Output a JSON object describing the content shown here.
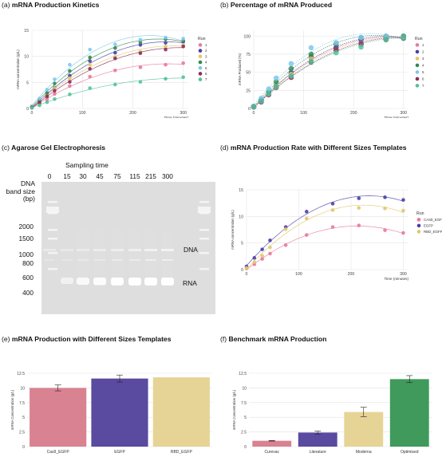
{
  "run_colors": [
    "#e8799a",
    "#4a3ea8",
    "#e2c76a",
    "#2f8a4c",
    "#7ec8ee",
    "#8a2c5a",
    "#52c29a"
  ],
  "panels": {
    "a": {
      "tag": "(a)",
      "title": "mRNA Production Kinetics",
      "chart_data": {
        "type": "scatter",
        "title": "mRNA Production Kinetics",
        "xlabel": "Time (minutes)",
        "ylabel": "mRNA concentration (g/L)",
        "xlim": [
          0,
          310
        ],
        "ylim": [
          0,
          15
        ],
        "xticks": [
          0,
          100,
          200,
          300
        ],
        "yticks": [
          0,
          5,
          10,
          15
        ],
        "legend_title": "Run",
        "legend_position": "right",
        "fit": "quadratic",
        "x": [
          0,
          15,
          30,
          45,
          75,
          115,
          165,
          215,
          265,
          300
        ],
        "series": [
          {
            "name": "1",
            "color": "#e8799a",
            "values": [
              0.2,
              0.9,
              1.7,
              2.8,
              4.3,
              6.1,
              7.3,
              7.9,
              8.4,
              8.7
            ]
          },
          {
            "name": "2",
            "color": "#4a3ea8",
            "values": [
              0.3,
              1.3,
              2.6,
              4.0,
              6.3,
              9.1,
              10.7,
              12.2,
              12.6,
              12.8
            ]
          },
          {
            "name": "3",
            "color": "#e2c76a",
            "values": [
              0.3,
              1.3,
              2.5,
              3.9,
              5.8,
              8.4,
              9.9,
              10.9,
              11.9,
              12.2
            ]
          },
          {
            "name": "4",
            "color": "#2f8a4c",
            "values": [
              0.4,
              1.6,
              3.0,
              4.8,
              7.2,
              9.8,
              11.6,
              12.7,
              13.3,
              13.0
            ]
          },
          {
            "name": "5",
            "color": "#7ec8ee",
            "values": [
              0.4,
              1.9,
              3.6,
              5.6,
              8.4,
              11.3,
              12.3,
              13.2,
              13.6,
              13.4
            ]
          },
          {
            "name": "6",
            "color": "#8a2c5a",
            "values": [
              0.2,
              1.1,
              2.3,
              3.4,
              5.1,
              7.6,
              9.6,
              10.6,
              11.3,
              11.9
            ]
          },
          {
            "name": "7",
            "color": "#52c29a",
            "values": [
              0.1,
              0.6,
              1.2,
              1.8,
              2.7,
              3.9,
              4.6,
              5.1,
              5.7,
              6.0
            ]
          }
        ]
      }
    },
    "b": {
      "tag": "(b)",
      "title": "Percentage of mRNA Produced",
      "chart_data": {
        "type": "scatter",
        "title": "Percentage of mRNA Produced",
        "xlabel": "Time (minutes)",
        "ylabel": "mRNA Produced (%)",
        "xlim": [
          0,
          310
        ],
        "ylim": [
          0,
          108
        ],
        "xticks": [
          0,
          100,
          200,
          300
        ],
        "yticks": [
          0,
          25,
          50,
          75,
          100
        ],
        "legend_title": "Run",
        "legend_position": "right",
        "fit": "quadratic",
        "x": [
          0,
          15,
          30,
          45,
          75,
          115,
          165,
          215,
          265,
          300
        ],
        "series": [
          {
            "name": "1",
            "color": "#e8799a",
            "values": [
              3,
              11,
              20,
              32,
              49,
              70,
              84,
              91,
              97,
              100
            ]
          },
          {
            "name": "2",
            "color": "#4a3ea8",
            "values": [
              2,
              10,
              20,
              31,
              49,
              71,
              84,
              95,
              98,
              100
            ]
          },
          {
            "name": "3",
            "color": "#e2c76a",
            "values": [
              2,
              11,
              20,
              32,
              47,
              69,
              81,
              89,
              97,
              100
            ]
          },
          {
            "name": "4",
            "color": "#2f8a4c",
            "values": [
              3,
              12,
              23,
              37,
              55,
              75,
              89,
              98,
              100,
              97
            ]
          },
          {
            "name": "5",
            "color": "#7ec8ee",
            "values": [
              3,
              14,
              27,
              42,
              62,
              84,
              91,
              98,
              100,
              99
            ]
          },
          {
            "name": "6",
            "color": "#8a2c5a",
            "values": [
              2,
              9,
              19,
              29,
              43,
              64,
              81,
              89,
              95,
              100
            ]
          },
          {
            "name": "7",
            "color": "#52c29a",
            "values": [
              2,
              10,
              20,
              30,
              45,
              65,
              77,
              85,
              95,
              100
            ]
          }
        ]
      }
    },
    "c": {
      "tag": "(c)",
      "title": "Agarose Gel Electrophoresis",
      "sampling_time_label": "Sampling time",
      "band_size_label": [
        "DNA",
        "band size",
        "(bp)"
      ],
      "lanes": [
        "0",
        "15",
        "30",
        "45",
        "75",
        "115",
        "215",
        "300"
      ],
      "ladder": [
        "2000",
        "1500",
        "1000",
        "800",
        "600",
        "400"
      ],
      "dna_label": "DNA",
      "rna_label": "RNA",
      "rna_band_intensity": [
        0,
        0.35,
        0.7,
        0.85,
        0.95,
        1,
        1,
        1
      ],
      "dna_band_intensity": [
        0.15,
        0.12,
        0.18,
        0.25,
        0.35,
        0.45,
        0.55,
        0.6
      ]
    },
    "d": {
      "tag": "(d)",
      "title": "mRNA Production Rate with Different Sizes Templates",
      "chart_data": {
        "type": "scatter",
        "title": "mRNA Production Rate with Different Sizes Templates",
        "xlabel": "Time (minutes)",
        "ylabel": "mRNA concentration (g/L)",
        "xlim": [
          0,
          310
        ],
        "ylim": [
          0,
          15
        ],
        "xticks": [
          0,
          100,
          200,
          300
        ],
        "yticks": [
          0,
          5,
          10,
          15
        ],
        "legend_title": "Run",
        "legend_position": "right",
        "fit": "quadratic",
        "x": [
          0,
          15,
          30,
          45,
          75,
          115,
          165,
          215,
          265,
          300
        ],
        "series": [
          {
            "name": "CAS9_EGFP",
            "color": "#e8799a",
            "values": [
              0.2,
              1.0,
              2.0,
              3.0,
              4.6,
              6.5,
              8.0,
              8.3,
              7.4,
              6.9
            ]
          },
          {
            "name": "EGFP",
            "color": "#4a3ea8",
            "values": [
              0.6,
              2.2,
              3.8,
              5.5,
              8.0,
              10.9,
              12.4,
              13.4,
              13.6,
              13.1
            ]
          },
          {
            "name": "RBD_EGFP",
            "color": "#e2c76a",
            "values": [
              0.3,
              1.4,
              2.6,
              4.2,
              7.6,
              9.6,
              11.2,
              11.6,
              11.5,
              11.1
            ]
          }
        ]
      }
    },
    "e": {
      "tag": "(e)",
      "title": "mRNA Production with Different Sizes Templates",
      "chart_data": {
        "type": "bar",
        "title": "mRNA Production with Different Sizes Templates",
        "xlabel": "",
        "ylabel": "mRNA Concentration (g/L)",
        "ylim": [
          0,
          12.5
        ],
        "yticks": [
          0,
          2.5,
          5.0,
          7.5,
          10.0,
          12.5
        ],
        "categories": [
          "Cas9_EGFP",
          "EGFP",
          "RBD_EGFP"
        ],
        "values": [
          10.0,
          11.6,
          11.8
        ],
        "errors": [
          0.5,
          0.6,
          0.0
        ],
        "colors": [
          "#d98292",
          "#5a4aa0",
          "#e6d496"
        ]
      }
    },
    "f": {
      "tag": "(f)",
      "title": "Benchmark mRNA Production",
      "chart_data": {
        "type": "bar",
        "title": "Benchmark mRNA Production",
        "xlabel": "",
        "ylabel": "mRNA Concentration (g/L)",
        "ylim": [
          0,
          12.5
        ],
        "yticks": [
          0,
          2.5,
          5.0,
          7.5,
          10.0,
          12.5
        ],
        "categories": [
          "Curevac",
          "Literature",
          "Moderna",
          "Optimised"
        ],
        "values": [
          1.0,
          2.4,
          5.9,
          11.5
        ],
        "errors": [
          0.05,
          0.25,
          0.8,
          0.6
        ],
        "colors": [
          "#d98292",
          "#5a4aa0",
          "#e6d496",
          "#3f9a5c"
        ]
      }
    }
  }
}
